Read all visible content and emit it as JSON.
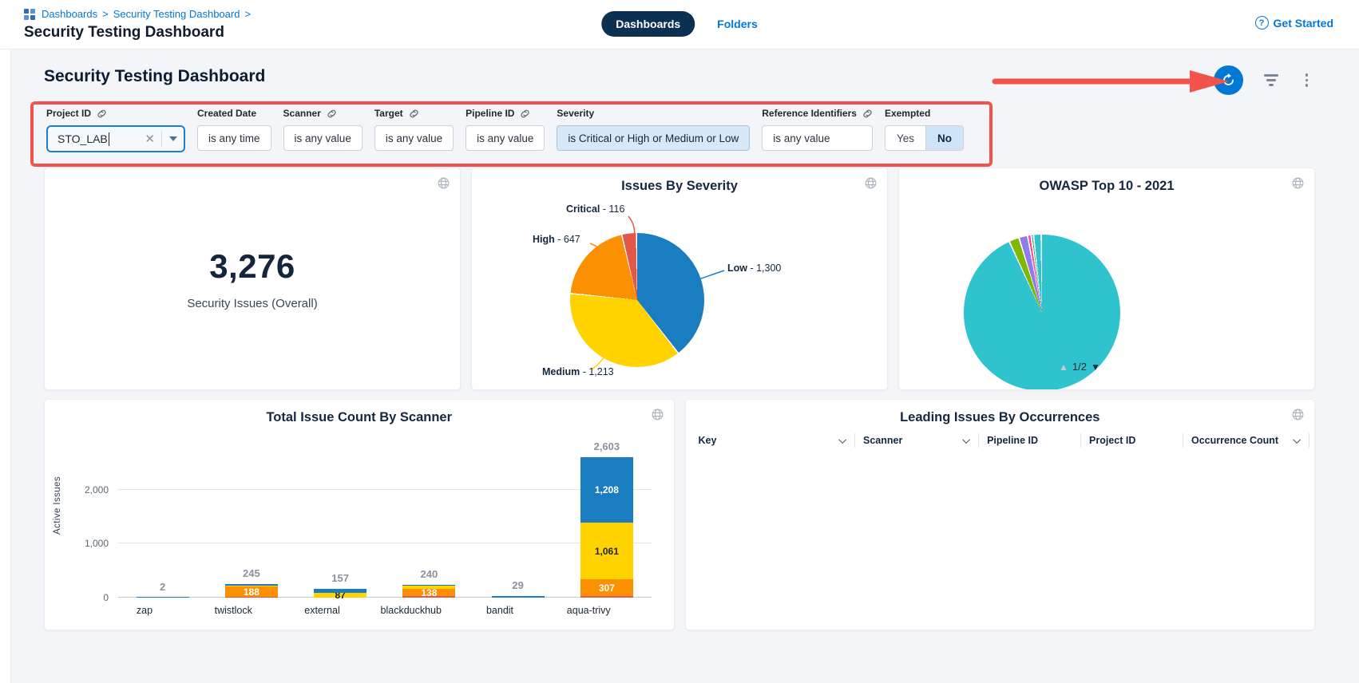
{
  "colors": {
    "accent": "#0278d5",
    "navy_pill": "#0b3052",
    "annotation_red": "#f2544d",
    "page_bg": "#f3f5f8"
  },
  "header": {
    "breadcrumb": {
      "items": [
        "Dashboards",
        "Security Testing Dashboard"
      ],
      "separator": ">"
    },
    "page_title": "Security Testing Dashboard",
    "tabs": [
      {
        "label": "Dashboards",
        "active": true
      },
      {
        "label": "Folders",
        "active": false
      }
    ],
    "get_started_label": "Get Started",
    "get_started_icon": "?"
  },
  "dashboard": {
    "title": "Security Testing Dashboard",
    "filters": [
      {
        "label": "Project ID",
        "linked": true,
        "control": "combobox",
        "value": "STO_LAB"
      },
      {
        "label": "Created Date",
        "linked": false,
        "control": "chip",
        "value": "is any time"
      },
      {
        "label": "Scanner",
        "linked": true,
        "control": "chip",
        "value": "is any value"
      },
      {
        "label": "Target",
        "linked": true,
        "control": "chip",
        "value": "is any value"
      },
      {
        "label": "Pipeline ID",
        "linked": true,
        "control": "chip",
        "value": "is any value"
      },
      {
        "label": "Severity",
        "linked": false,
        "control": "chip-selected",
        "value": "is Critical or High or Medium or Low"
      },
      {
        "label": "Reference Identifiers",
        "linked": true,
        "control": "chip",
        "value": "is any value"
      },
      {
        "label": "Exempted",
        "linked": false,
        "control": "toggle",
        "options": [
          "Yes",
          "No"
        ],
        "selected": "No"
      }
    ]
  },
  "chart_data": [
    {
      "type": "stat",
      "title": "Security Issues (Overall)",
      "value": "3,276"
    },
    {
      "type": "pie",
      "title": "Issues By Severity",
      "total": 3276,
      "clockwise_from_top": true,
      "slices": [
        {
          "label": "Low",
          "value": 1300,
          "tail": " - 1,300",
          "color": "#1a7dc0"
        },
        {
          "label": "Medium",
          "value": 1213,
          "tail": " - 1,213",
          "color": "#ffd200"
        },
        {
          "label": "High",
          "value": 647,
          "tail": " - 647",
          "color": "#fc9003"
        },
        {
          "label": "Critical",
          "value": 116,
          "tail": " - 116",
          "color": "#e5564a"
        }
      ]
    },
    {
      "type": "pie",
      "title": "OWASP Top 10 - 2021",
      "values_estimated_pct": true,
      "slices": [
        {
          "label": "",
          "value": 93.3,
          "color": "#2fc3ce"
        },
        {
          "label": "",
          "value": 2.1,
          "color": "#7fb800"
        },
        {
          "label": "",
          "value": 1.8,
          "color": "#8f7ee8"
        },
        {
          "label": "",
          "value": 0.7,
          "color": "#f23fa0"
        },
        {
          "label": "",
          "value": 0.5,
          "color": "#27b357"
        },
        {
          "label": "",
          "value": 1.6,
          "color": "#2fc3ce"
        }
      ],
      "pagination": {
        "up": "▲",
        "label": "1/2",
        "down": "▼"
      }
    },
    {
      "type": "stacked_bar",
      "title": "Total Issue Count By Scanner",
      "ylabel": "Active Issues",
      "yticks": [
        {
          "value": 0,
          "label": "0"
        },
        {
          "value": 1000,
          "label": "1,000"
        },
        {
          "value": 2000,
          "label": "2,000"
        }
      ],
      "colors": {
        "red": "#e5564a",
        "orange": "#fc9003",
        "yellow": "#ffd200",
        "blue": "#1a7dc0"
      },
      "categories": [
        "zap",
        "twistlock",
        "external",
        "blackduckhub",
        "bandit",
        "aqua-trivy"
      ],
      "totals": [
        "2",
        "245",
        "157",
        "240",
        "29",
        "2,603"
      ],
      "stacks": [
        [
          {
            "c": "blue",
            "v": 2
          }
        ],
        [
          {
            "c": "red",
            "v": 15
          },
          {
            "c": "orange",
            "v": 188,
            "label": "188",
            "lc": "#ffffff"
          },
          {
            "c": "yellow",
            "v": 20
          },
          {
            "c": "blue",
            "v": 22
          }
        ],
        [
          {
            "c": "yellow",
            "v": 87,
            "label": "87",
            "lc": "#1c2633"
          },
          {
            "c": "blue",
            "v": 70
          }
        ],
        [
          {
            "c": "red",
            "v": 25
          },
          {
            "c": "orange",
            "v": 138,
            "label": "138",
            "lc": "#ffffff"
          },
          {
            "c": "yellow",
            "v": 60
          },
          {
            "c": "blue",
            "v": 17
          }
        ],
        [
          {
            "c": "blue",
            "v": 29
          }
        ],
        [
          {
            "c": "red",
            "v": 27
          },
          {
            "c": "orange",
            "v": 307,
            "label": "307",
            "lc": "#ffffff"
          },
          {
            "c": "yellow",
            "v": 1061,
            "label": "1,061",
            "lc": "#1c2633"
          },
          {
            "c": "blue",
            "v": 1208,
            "label": "1,208",
            "lc": "#ffffff"
          }
        ]
      ]
    },
    {
      "type": "table",
      "title": "Leading Issues By Occurrences",
      "columns": [
        {
          "label": "Key",
          "sortable": true
        },
        {
          "label": "Scanner",
          "sortable": true
        },
        {
          "label": "Pipeline ID",
          "sortable": false
        },
        {
          "label": "Project ID",
          "sortable": false
        },
        {
          "label": "Occurrence Count",
          "sortable": true
        }
      ],
      "rows": []
    }
  ]
}
